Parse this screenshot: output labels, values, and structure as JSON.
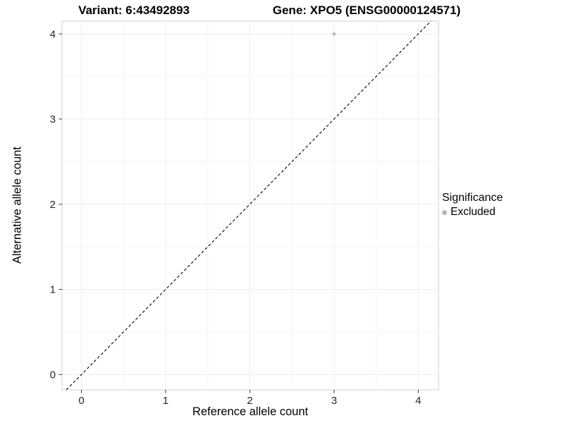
{
  "chart_data": {
    "type": "scatter",
    "title_left": "Variant: 6:43492893",
    "title_right": "Gene: XPO5 (ENSG00000124571)",
    "xlabel": "Reference allele count",
    "ylabel": "Alternative allele count",
    "x_ticks": [
      0,
      1,
      2,
      3,
      4
    ],
    "y_ticks": [
      0,
      1,
      2,
      3,
      4
    ],
    "xlim": [
      -0.23,
      4.24
    ],
    "ylim": [
      -0.18,
      4.15
    ],
    "grid": true,
    "reference_line": {
      "type": "identity-diagonal",
      "style": "dashed",
      "color": "#000000"
    },
    "series": [
      {
        "name": "Excluded",
        "color": "#b5b5b5",
        "points": [
          {
            "x": 3,
            "y": 4
          }
        ]
      }
    ],
    "legend": {
      "title": "Significance",
      "position": "right",
      "entries": [
        {
          "label": "Excluded",
          "color": "#b5b5b5"
        }
      ]
    }
  }
}
